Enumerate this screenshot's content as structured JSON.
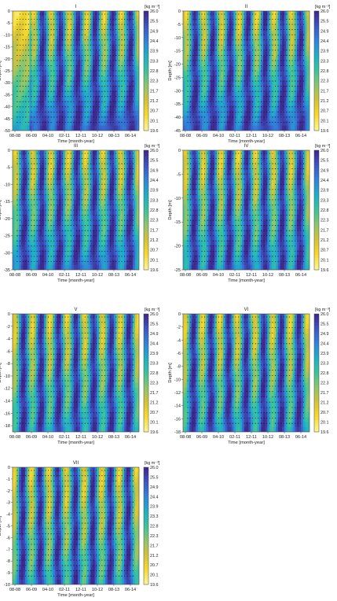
{
  "figure": {
    "shared": {
      "xlabel": "Time [month-year]",
      "ylabel": "Depth [m]",
      "colorbar_unit": "[kg m⁻³]",
      "x_ticks": [
        "08-08",
        "06-09",
        "04-10",
        "02-11",
        "12-11",
        "10-12",
        "08-13",
        "06-14"
      ],
      "colorbar_ticks": [
        "26.0",
        "25.5",
        "24.9",
        "24.4",
        "23.9",
        "23.3",
        "22.8",
        "22.3",
        "21.7",
        "21.2",
        "20.7",
        "20.1",
        "19.6"
      ],
      "colormap": [
        "#3e2a8f",
        "#3d58c7",
        "#2f86d9",
        "#1fb0c6",
        "#3cc39b",
        "#8cc66b",
        "#d3c238",
        "#f6d92a",
        "#fbf28f"
      ]
    },
    "chart_data": [
      {
        "type": "heatmap",
        "title": "I",
        "xlabel": "Time [month-year]",
        "ylabel": "Depth [m]",
        "y_ticks": [
          "0",
          "-5",
          "-10",
          "-15",
          "-20",
          "-25",
          "-30",
          "-35",
          "-40",
          "-45",
          "-50"
        ],
        "ylim": [
          -50,
          0
        ],
        "colorbar_range": [
          19.6,
          26.0
        ],
        "description_values": {
          "surface_density_range": [
            19.6,
            26.0
          ],
          "bottom_density": 25.5
        }
      },
      {
        "type": "heatmap",
        "title": "II",
        "xlabel": "Time [month-year]",
        "ylabel": "Depth [m]",
        "y_ticks": [
          "0",
          "-5",
          "-10",
          "-15",
          "-20",
          "-25",
          "-30",
          "-35",
          "-40",
          "-45"
        ],
        "ylim": [
          -45,
          0
        ],
        "colorbar_range": [
          19.6,
          26.0
        ],
        "description_values": {
          "surface_density_range": [
            19.6,
            26.0
          ],
          "bottom_density": 25.5
        }
      },
      {
        "type": "heatmap",
        "title": "III",
        "xlabel": "Time [month-year]",
        "ylabel": "Depth [m]",
        "y_ticks": [
          "0",
          "-5",
          "-10",
          "-15",
          "-20",
          "-25",
          "-30",
          "-35"
        ],
        "ylim": [
          -35,
          0
        ],
        "colorbar_range": [
          19.6,
          26.0
        ],
        "description_values": {
          "surface_density_range": [
            19.6,
            26.0
          ],
          "bottom_density": 25.3
        }
      },
      {
        "type": "heatmap",
        "title": "IV",
        "xlabel": "Time [month-year]",
        "ylabel": "Depth [m]",
        "y_ticks": [
          "0",
          "-5",
          "-10",
          "-15",
          "-20",
          "-25"
        ],
        "ylim": [
          -25,
          0
        ],
        "colorbar_range": [
          19.6,
          26.0
        ],
        "description_values": {
          "surface_density_range": [
            19.6,
            26.0
          ],
          "bottom_density": 24.9
        }
      },
      {
        "type": "heatmap",
        "title": "V",
        "xlabel": "Time [month-year]",
        "ylabel": "Depth [m]",
        "y_ticks": [
          "0",
          "-2",
          "-4",
          "-6",
          "-8",
          "-10",
          "-12",
          "-14",
          "-16",
          "-18"
        ],
        "ylim": [
          -19,
          0
        ],
        "colorbar_range": [
          19.6,
          26.0
        ],
        "description_values": {
          "surface_density_range": [
            19.6,
            26.0
          ],
          "bottom_density": 24.6
        }
      },
      {
        "type": "heatmap",
        "title": "VI",
        "xlabel": "Time [month-year]",
        "ylabel": "Depth [m]",
        "y_ticks": [
          "0",
          "-2",
          "-4",
          "-6",
          "-8",
          "-10",
          "-12",
          "-14",
          "-16",
          "-18"
        ],
        "ylim": [
          -18,
          0
        ],
        "colorbar_range": [
          19.6,
          26.0
        ],
        "description_values": {
          "surface_density_range": [
            19.6,
            26.0
          ],
          "bottom_density": 24.6
        }
      },
      {
        "type": "heatmap",
        "title": "VII",
        "xlabel": "Time [month-year]",
        "ylabel": "Depth [m]",
        "y_ticks": [
          "0",
          "-1",
          "-2",
          "-3",
          "-4",
          "-5",
          "-6",
          "-7",
          "-8",
          "-9",
          "-10"
        ],
        "ylim": [
          -10,
          0
        ],
        "colorbar_range": [
          19.6,
          26.0
        ],
        "description_values": {
          "surface_density_range": [
            19.6,
            26.0
          ],
          "bottom_density": 24.0
        }
      }
    ]
  }
}
